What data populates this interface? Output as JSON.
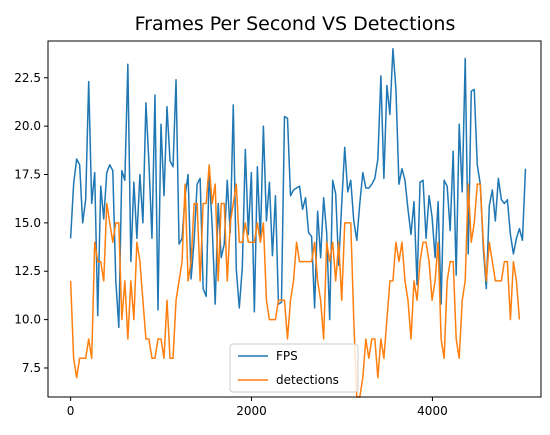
{
  "chart_data": {
    "type": "line",
    "title": "Frames Per Second VS Detections",
    "xlabel": "",
    "ylabel": "",
    "xlim": [
      -250,
      5200
    ],
    "ylim": [
      6.0,
      24.4
    ],
    "x_ticks": [
      0,
      2000,
      4000
    ],
    "x_tick_labels": [
      "0",
      "2000",
      "4000"
    ],
    "y_ticks": [
      7.5,
      10.0,
      12.5,
      15.0,
      17.5,
      20.0,
      22.5
    ],
    "y_tick_labels": [
      "7.5",
      "10.0",
      "12.5",
      "15.0",
      "17.5",
      "20.0",
      "22.5"
    ],
    "legend_position": "lower-center",
    "grid": false,
    "x_start": 0,
    "x_step": 33.3,
    "series": [
      {
        "name": "FPS",
        "color": "#1f77b4",
        "values": [
          14.2,
          17.0,
          18.3,
          18.0,
          15.0,
          16.2,
          22.3,
          16.0,
          17.6,
          10.2,
          16.9,
          15.2,
          17.6,
          18.0,
          17.7,
          12.0,
          9.6,
          17.7,
          17.2,
          23.2,
          13.0,
          17.1,
          14.2,
          17.5,
          15.0,
          21.2,
          18.1,
          14.2,
          21.6,
          10.5,
          20.1,
          16.4,
          21.0,
          18.2,
          17.9,
          22.4,
          13.9,
          14.2,
          16.4,
          17.5,
          12.1,
          14.1,
          17.0,
          17.3,
          11.6,
          11.2,
          17.7,
          14.8,
          10.8,
          16.0,
          13.2,
          13.9,
          17.2,
          14.5,
          21.1,
          12.6,
          10.6,
          12.7,
          18.8,
          14.4,
          17.6,
          10.4,
          17.9,
          14.1,
          20.0,
          15.1,
          17.1,
          13.3,
          16.4,
          10.8,
          10.9,
          20.5,
          20.4,
          16.4,
          16.7,
          16.8,
          16.9,
          15.7,
          16.3,
          14.5,
          14.3,
          10.6,
          15.6,
          13.2,
          16.3,
          14.5,
          10.0,
          17.2,
          16.5,
          12.8,
          16.0,
          18.9,
          16.6,
          17.2,
          15.1,
          14.1,
          16.0,
          17.6,
          16.8,
          16.8,
          17.0,
          17.3,
          18.3,
          22.6,
          17.3,
          22.1,
          20.6,
          24.0,
          21.9,
          17.0,
          17.8,
          17.2,
          15.7,
          14.4,
          16.1,
          11.8,
          17.1,
          17.2,
          14.2,
          16.4,
          15.3,
          13.2,
          16.1,
          10.8,
          17.2,
          16.9,
          14.6,
          18.7,
          12.3,
          20.1,
          16.6,
          23.5,
          13.4,
          21.8,
          21.9,
          18.0,
          17.0,
          13.7,
          11.6,
          15.9,
          16.7,
          15.1,
          17.3,
          16.2,
          16.0,
          16.2,
          14.4,
          13.4,
          14.2,
          14.7,
          14.1,
          17.8
        ],
        "line_width": 1.5
      },
      {
        "name": "detections",
        "color": "#ff7f0e",
        "values": [
          12.0,
          8.0,
          7.0,
          8.0,
          8.0,
          8.0,
          9.0,
          8.0,
          14.0,
          13.0,
          13.0,
          12.0,
          16.0,
          15.0,
          14.0,
          15.0,
          15.0,
          10.0,
          12.0,
          9.0,
          12.0,
          10.0,
          14.0,
          13.0,
          11.0,
          9.0,
          9.0,
          8.0,
          8.0,
          9.0,
          9.0,
          8.0,
          11.0,
          8.0,
          8.0,
          11.0,
          12.0,
          13.0,
          17.0,
          12.0,
          13.0,
          16.0,
          16.0,
          12.0,
          16.0,
          16.0,
          18.0,
          16.0,
          17.0,
          12.0,
          16.0,
          16.0,
          12.0,
          15.0,
          16.0,
          17.0,
          14.0,
          14.0,
          15.0,
          14.0,
          14.0,
          14.0,
          15.0,
          14.0,
          15.0,
          11.0,
          10.0,
          10.0,
          10.0,
          11.0,
          11.0,
          11.0,
          9.0,
          11.0,
          12.0,
          14.0,
          13.0,
          13.0,
          13.0,
          13.0,
          13.0,
          14.0,
          12.0,
          11.0,
          9.0,
          14.0,
          13.0,
          14.0,
          12.0,
          14.0,
          11.0,
          15.0,
          15.0,
          15.0,
          10.0,
          6.0,
          6.0,
          7.0,
          9.0,
          8.0,
          9.0,
          9.0,
          7.0,
          9.0,
          8.0,
          10.0,
          12.0,
          12.0,
          14.0,
          13.0,
          14.0,
          12.0,
          11.0,
          9.0,
          12.0,
          11.0,
          13.0,
          14.0,
          14.0,
          13.0,
          11.0,
          12.0,
          14.0,
          9.0,
          8.0,
          12.0,
          13.0,
          13.0,
          9.0,
          8.0,
          11.0,
          12.0,
          17.0,
          14.0,
          15.0,
          17.0,
          17.0,
          14.0,
          12.0,
          14.0,
          13.0,
          12.0,
          12.0,
          12.0,
          13.0,
          13.0,
          10.0,
          13.0,
          12.0,
          10.0
        ],
        "line_width": 1.5
      }
    ]
  }
}
